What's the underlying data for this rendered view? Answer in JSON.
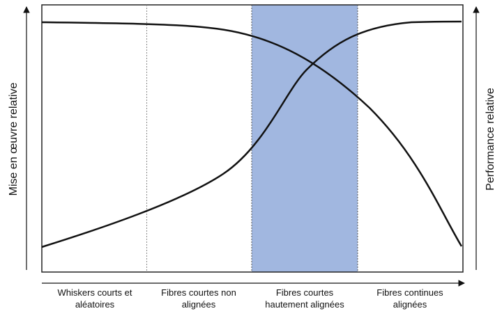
{
  "colors": {
    "highlight": "#a1b7e0",
    "curve": "#111111",
    "frame": "#222222",
    "divider": "#888888"
  },
  "axes": {
    "left_label": "Mise en œuvre relative",
    "right_label": "Performance relative"
  },
  "categories": [
    {
      "line1": "Whiskers courts et",
      "line2": "aléatoires"
    },
    {
      "line1": "Fibres courtes non",
      "line2": "alignées"
    },
    {
      "line1": "Fibres courtes",
      "line2": "hautement alignées"
    },
    {
      "line1": "Fibres continues",
      "line2": "alignées"
    }
  ],
  "highlighted_category_index": 2
}
